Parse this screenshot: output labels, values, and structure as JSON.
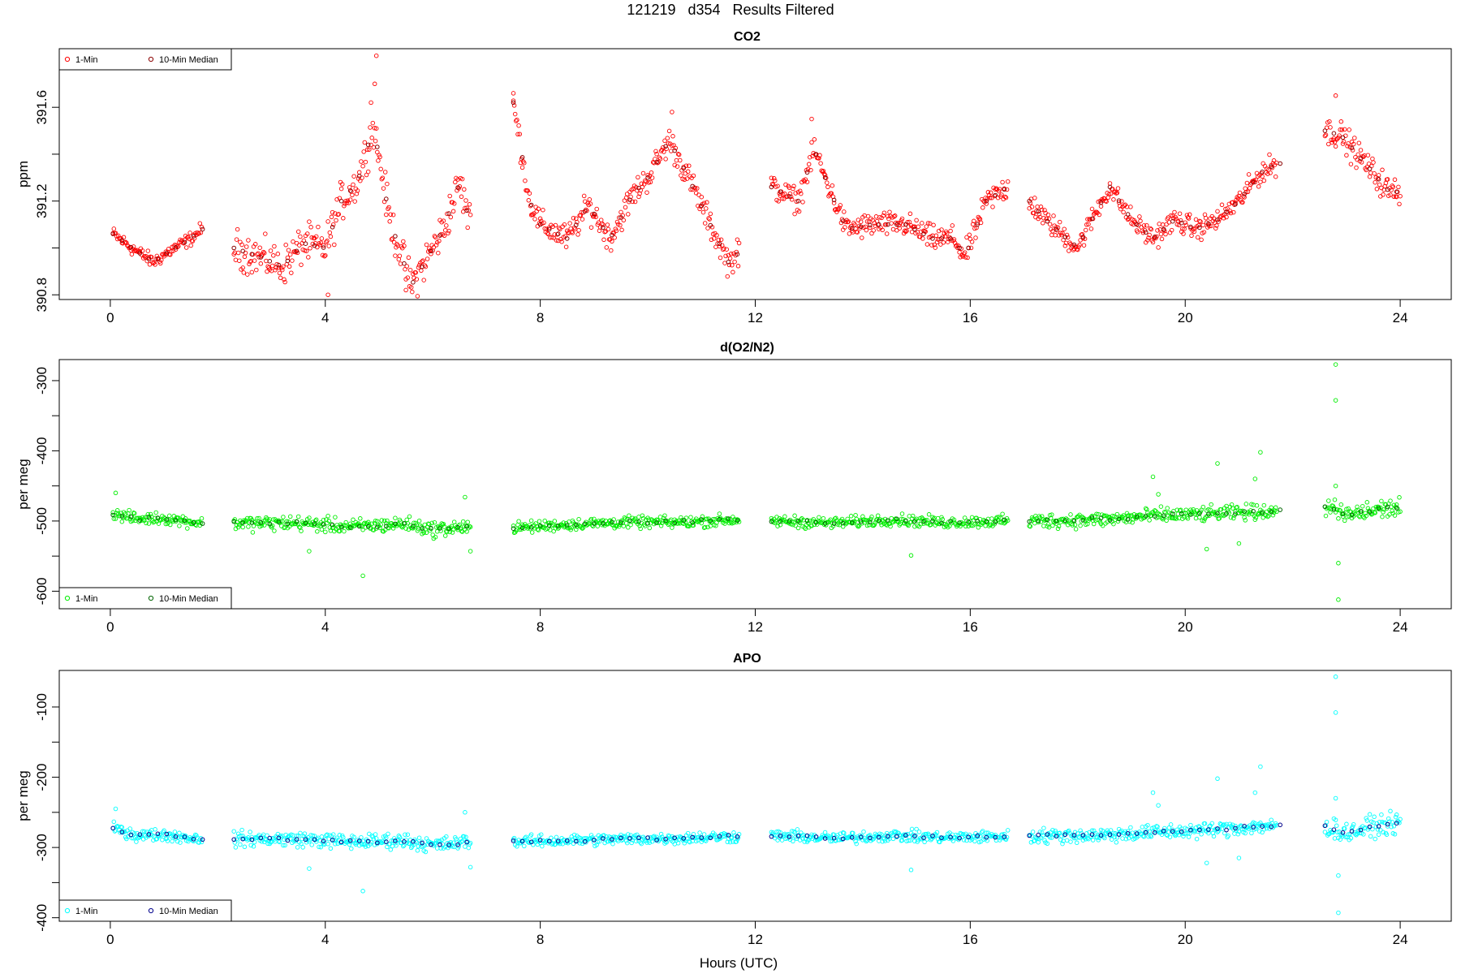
{
  "figure": {
    "title": "121219   d354   Results Filtered",
    "xlabel": "Hours (UTC)"
  },
  "chart_data": [
    {
      "type": "scatter",
      "title": "CO2",
      "ylabel": "ppm",
      "xlim": [
        -0.95,
        24.95
      ],
      "ylim": [
        390.78,
        391.85
      ],
      "xticks": [
        0,
        4,
        8,
        12,
        16,
        20,
        24
      ],
      "yticks": [
        390.8,
        391.2,
        391.6
      ],
      "yminor": [
        391.0,
        391.4
      ],
      "legend": {
        "position": "top-left",
        "entries": [
          "1-Min",
          "10-Min Median"
        ]
      },
      "one_min_color": "#ff0000",
      "median_color": "#8b0000",
      "segments": [
        {
          "x_start": 0.05,
          "x_end": 1.7,
          "anchors": [
            [
              0.05,
              391.06
            ],
            [
              0.4,
              391.0
            ],
            [
              0.8,
              390.94
            ],
            [
              1.2,
              391.0
            ],
            [
              1.5,
              391.04
            ],
            [
              1.7,
              391.08
            ]
          ],
          "noise": 0.025
        },
        {
          "x_start": 2.3,
          "x_end": 6.7,
          "anchors": [
            [
              2.3,
              391.0
            ],
            [
              2.8,
              390.96
            ],
            [
              3.2,
              390.92
            ],
            [
              3.6,
              391.02
            ],
            [
              4.0,
              391.0
            ],
            [
              4.3,
              391.2
            ],
            [
              4.6,
              391.28
            ],
            [
              4.9,
              391.52
            ],
            [
              5.2,
              391.12
            ],
            [
              5.6,
              390.84
            ],
            [
              5.9,
              390.96
            ],
            [
              6.2,
              391.08
            ],
            [
              6.5,
              391.28
            ],
            [
              6.7,
              391.1
            ]
          ],
          "noise": 0.07
        },
        {
          "x_start": 7.5,
          "x_end": 11.7,
          "anchors": [
            [
              7.5,
              391.62
            ],
            [
              7.8,
              391.2
            ],
            [
              8.0,
              391.1
            ],
            [
              8.5,
              391.04
            ],
            [
              8.9,
              391.18
            ],
            [
              9.3,
              391.04
            ],
            [
              9.7,
              391.22
            ],
            [
              10.0,
              391.3
            ],
            [
              10.4,
              391.46
            ],
            [
              10.8,
              391.28
            ],
            [
              11.2,
              391.08
            ],
            [
              11.5,
              390.94
            ],
            [
              11.7,
              390.98
            ]
          ],
          "noise": 0.05
        },
        {
          "x_start": 12.3,
          "x_end": 16.7,
          "anchors": [
            [
              12.3,
              391.26
            ],
            [
              12.8,
              391.2
            ],
            [
              13.1,
              391.42
            ],
            [
              13.4,
              391.24
            ],
            [
              13.7,
              391.08
            ],
            [
              14.2,
              391.1
            ],
            [
              14.8,
              391.1
            ],
            [
              15.3,
              391.04
            ],
            [
              15.7,
              391.04
            ],
            [
              15.9,
              390.96
            ],
            [
              16.3,
              391.2
            ],
            [
              16.7,
              391.26
            ]
          ],
          "noise": 0.045
        },
        {
          "x_start": 17.1,
          "x_end": 21.7,
          "anchors": [
            [
              17.1,
              391.2
            ],
            [
              17.4,
              391.12
            ],
            [
              17.7,
              391.06
            ],
            [
              18.0,
              391.0
            ],
            [
              18.3,
              391.14
            ],
            [
              18.6,
              391.26
            ],
            [
              19.0,
              391.12
            ],
            [
              19.4,
              391.04
            ],
            [
              19.8,
              391.12
            ],
            [
              20.2,
              391.08
            ],
            [
              20.6,
              391.12
            ],
            [
              21.0,
              391.2
            ],
            [
              21.4,
              391.32
            ],
            [
              21.7,
              391.36
            ]
          ],
          "noise": 0.04
        },
        {
          "x_start": 22.6,
          "x_end": 24.0,
          "anchors": [
            [
              22.6,
              391.5
            ],
            [
              22.9,
              391.48
            ],
            [
              23.2,
              391.4
            ],
            [
              23.5,
              391.32
            ],
            [
              23.8,
              391.24
            ],
            [
              24.0,
              391.24
            ]
          ],
          "noise": 0.05
        }
      ],
      "medians": {
        "y_offset": 0.0,
        "noise": 0.0
      },
      "outliers": [
        [
          4.95,
          391.82
        ],
        [
          4.92,
          391.7
        ],
        [
          4.85,
          391.62
        ],
        [
          7.5,
          391.66
        ],
        [
          5.5,
          390.82
        ],
        [
          4.05,
          390.8
        ],
        [
          22.8,
          391.65
        ],
        [
          13.05,
          391.55
        ],
        [
          10.45,
          391.58
        ]
      ]
    },
    {
      "type": "scatter",
      "title": "d(O2/N2)",
      "ylabel": "per meg",
      "xlim": [
        -0.95,
        24.95
      ],
      "ylim": [
        -625,
        -270
      ],
      "xticks": [
        0,
        4,
        8,
        12,
        16,
        20,
        24
      ],
      "yticks": [
        -600,
        -500,
        -400,
        -300
      ],
      "yminor": [
        -550,
        -450,
        -350
      ],
      "legend": {
        "position": "bottom-left",
        "entries": [
          "1-Min",
          "10-Min Median"
        ]
      },
      "one_min_color": "#00ee00",
      "median_color": "#006400",
      "segments": [
        {
          "x_start": 0.05,
          "x_end": 1.7,
          "anchors": [
            [
              0.05,
              -490
            ],
            [
              0.5,
              -497
            ],
            [
              1.0,
              -496
            ],
            [
              1.7,
              -503
            ]
          ],
          "noise": 7
        },
        {
          "x_start": 2.3,
          "x_end": 6.7,
          "anchors": [
            [
              2.3,
              -503
            ],
            [
              3.5,
              -503
            ],
            [
              4.5,
              -508
            ],
            [
              5.5,
              -504
            ],
            [
              6.0,
              -512
            ],
            [
              6.7,
              -508
            ]
          ],
          "noise": 9
        },
        {
          "x_start": 7.5,
          "x_end": 11.7,
          "anchors": [
            [
              7.5,
              -510
            ],
            [
              8.5,
              -505
            ],
            [
              9.5,
              -502
            ],
            [
              10.5,
              -502
            ],
            [
              11.7,
              -498
            ]
          ],
          "noise": 7
        },
        {
          "x_start": 12.3,
          "x_end": 16.7,
          "anchors": [
            [
              12.3,
              -500
            ],
            [
              13.5,
              -503
            ],
            [
              14.5,
              -498
            ],
            [
              15.5,
              -502
            ],
            [
              16.7,
              -500
            ]
          ],
          "noise": 7
        },
        {
          "x_start": 17.1,
          "x_end": 21.7,
          "anchors": [
            [
              17.1,
              -500
            ],
            [
              18.5,
              -498
            ],
            [
              19.5,
              -492
            ],
            [
              20.5,
              -490
            ],
            [
              21.7,
              -485
            ]
          ],
          "noise": 9
        },
        {
          "x_start": 22.6,
          "x_end": 24.0,
          "anchors": [
            [
              22.6,
              -480
            ],
            [
              23.0,
              -492
            ],
            [
              23.5,
              -485
            ],
            [
              24.0,
              -480
            ]
          ],
          "noise": 12
        }
      ],
      "medians": {
        "y_offset": 0,
        "noise": 2
      },
      "outliers": [
        [
          0.1,
          -460
        ],
        [
          3.7,
          -543
        ],
        [
          4.7,
          -578
        ],
        [
          6.6,
          -466
        ],
        [
          6.7,
          -543
        ],
        [
          14.9,
          -549
        ],
        [
          19.4,
          -437
        ],
        [
          19.5,
          -462
        ],
        [
          20.4,
          -540
        ],
        [
          20.6,
          -418
        ],
        [
          21.4,
          -402
        ],
        [
          21.3,
          -440
        ],
        [
          22.8,
          -277
        ],
        [
          22.8,
          -328
        ],
        [
          22.85,
          -560
        ],
        [
          22.85,
          -612
        ],
        [
          22.8,
          -450
        ],
        [
          21.0,
          -532
        ]
      ]
    },
    {
      "type": "scatter",
      "title": "APO",
      "ylabel": "per meg",
      "xlim": [
        -0.95,
        24.95
      ],
      "ylim": [
        -405,
        -48
      ],
      "xticks": [
        0,
        4,
        8,
        12,
        16,
        20,
        24
      ],
      "yticks": [
        -400,
        -300,
        -200,
        -100
      ],
      "yminor": [
        -350,
        -250,
        -150
      ],
      "legend": {
        "position": "bottom-left",
        "entries": [
          "1-Min",
          "10-Min Median"
        ]
      },
      "one_min_color": "#00ffff",
      "median_color": "#00008b",
      "segments": [
        {
          "x_start": 0.05,
          "x_end": 1.7,
          "anchors": [
            [
              0.05,
              -272
            ],
            [
              0.5,
              -283
            ],
            [
              1.0,
              -282
            ],
            [
              1.7,
              -288
            ]
          ],
          "noise": 7
        },
        {
          "x_start": 2.3,
          "x_end": 6.7,
          "anchors": [
            [
              2.3,
              -288
            ],
            [
              3.5,
              -288
            ],
            [
              4.5,
              -292
            ],
            [
              5.5,
              -290
            ],
            [
              6.0,
              -297
            ],
            [
              6.7,
              -292
            ]
          ],
          "noise": 9
        },
        {
          "x_start": 7.5,
          "x_end": 11.7,
          "anchors": [
            [
              7.5,
              -292
            ],
            [
              8.5,
              -290
            ],
            [
              9.5,
              -288
            ],
            [
              10.5,
              -287
            ],
            [
              11.7,
              -284
            ]
          ],
          "noise": 7
        },
        {
          "x_start": 12.3,
          "x_end": 16.7,
          "anchors": [
            [
              12.3,
              -283
            ],
            [
              13.5,
              -287
            ],
            [
              14.5,
              -283
            ],
            [
              15.5,
              -286
            ],
            [
              16.7,
              -284
            ]
          ],
          "noise": 7
        },
        {
          "x_start": 17.1,
          "x_end": 21.7,
          "anchors": [
            [
              17.1,
              -284
            ],
            [
              18.5,
              -282
            ],
            [
              19.5,
              -278
            ],
            [
              20.5,
              -275
            ],
            [
              21.7,
              -268
            ]
          ],
          "noise": 9
        },
        {
          "x_start": 22.6,
          "x_end": 24.0,
          "anchors": [
            [
              22.6,
              -270
            ],
            [
              23.0,
              -280
            ],
            [
              23.5,
              -270
            ],
            [
              24.0,
              -265
            ]
          ],
          "noise": 12
        }
      ],
      "medians": {
        "y_offset": 0,
        "noise": 2
      },
      "outliers": [
        [
          0.1,
          -245
        ],
        [
          3.7,
          -330
        ],
        [
          4.7,
          -362
        ],
        [
          6.6,
          -250
        ],
        [
          6.7,
          -328
        ],
        [
          14.9,
          -332
        ],
        [
          19.4,
          -222
        ],
        [
          19.5,
          -240
        ],
        [
          20.4,
          -322
        ],
        [
          20.6,
          -202
        ],
        [
          21.4,
          -185
        ],
        [
          21.3,
          -222
        ],
        [
          22.8,
          -57
        ],
        [
          22.8,
          -108
        ],
        [
          22.85,
          -340
        ],
        [
          22.85,
          -393
        ],
        [
          22.8,
          -230
        ],
        [
          21.0,
          -315
        ]
      ]
    }
  ]
}
